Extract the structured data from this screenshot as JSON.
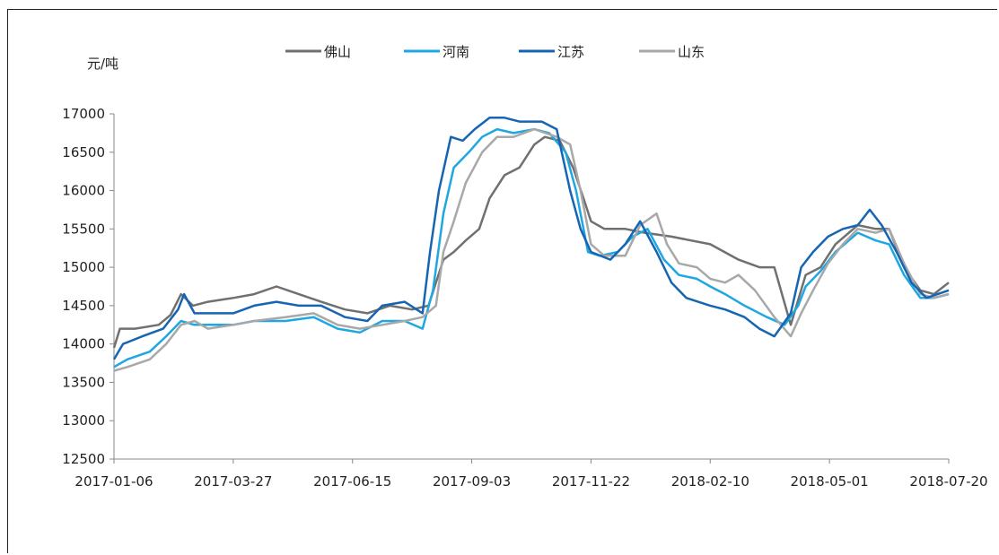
{
  "chart_data": {
    "type": "line",
    "title": "",
    "ylabel": "元/吨",
    "xlabel": "",
    "ylim": [
      12500,
      17000
    ],
    "y_ticks": [
      12500,
      13000,
      13500,
      14000,
      14500,
      15000,
      15500,
      16000,
      16500,
      17000
    ],
    "x_ticks": [
      "2017-01-06",
      "2017-03-27",
      "2017-06-15",
      "2017-09-03",
      "2017-11-22",
      "2018-02-10",
      "2018-05-01",
      "2018-07-20"
    ],
    "xlim": [
      "2017-01-06",
      "2018-07-20"
    ],
    "grid": false,
    "legend_position": "top-center",
    "series": [
      {
        "name": "佛山",
        "color": "#707070",
        "points": [
          [
            "2017-01-06",
            13950
          ],
          [
            "2017-01-10",
            14200
          ],
          [
            "2017-01-20",
            14200
          ],
          [
            "2017-02-05",
            14250
          ],
          [
            "2017-02-13",
            14380
          ],
          [
            "2017-02-20",
            14650
          ],
          [
            "2017-02-28",
            14500
          ],
          [
            "2017-03-10",
            14550
          ],
          [
            "2017-03-27",
            14600
          ],
          [
            "2017-04-10",
            14650
          ],
          [
            "2017-04-25",
            14750
          ],
          [
            "2017-05-10",
            14650
          ],
          [
            "2017-05-25",
            14550
          ],
          [
            "2017-06-10",
            14450
          ],
          [
            "2017-06-25",
            14400
          ],
          [
            "2017-07-10",
            14500
          ],
          [
            "2017-07-25",
            14450
          ],
          [
            "2017-08-05",
            14500
          ],
          [
            "2017-08-15",
            15100
          ],
          [
            "2017-08-22",
            15200
          ],
          [
            "2017-08-30",
            15350
          ],
          [
            "2017-09-08",
            15500
          ],
          [
            "2017-09-15",
            15900
          ],
          [
            "2017-09-25",
            16200
          ],
          [
            "2017-10-05",
            16300
          ],
          [
            "2017-10-15",
            16600
          ],
          [
            "2017-10-22",
            16700
          ],
          [
            "2017-11-01",
            16650
          ],
          [
            "2017-11-10",
            16300
          ],
          [
            "2017-11-17",
            15900
          ],
          [
            "2017-11-22",
            15600
          ],
          [
            "2017-12-01",
            15500
          ],
          [
            "2017-12-15",
            15500
          ],
          [
            "2017-12-28",
            15450
          ],
          [
            "2018-01-15",
            15400
          ],
          [
            "2018-02-10",
            15300
          ],
          [
            "2018-03-01",
            15100
          ],
          [
            "2018-03-15",
            15000
          ],
          [
            "2018-03-25",
            15000
          ],
          [
            "2018-04-05",
            14250
          ],
          [
            "2018-04-15",
            14900
          ],
          [
            "2018-04-25",
            15000
          ],
          [
            "2018-05-05",
            15300
          ],
          [
            "2018-05-20",
            15550
          ],
          [
            "2018-06-01",
            15500
          ],
          [
            "2018-06-10",
            15500
          ],
          [
            "2018-06-20",
            15000
          ],
          [
            "2018-07-01",
            14700
          ],
          [
            "2018-07-10",
            14650
          ],
          [
            "2018-07-20",
            14800
          ]
        ]
      },
      {
        "name": "河南",
        "color": "#1ea7e1",
        "points": [
          [
            "2017-01-06",
            13700
          ],
          [
            "2017-01-15",
            13800
          ],
          [
            "2017-01-30",
            13900
          ],
          [
            "2017-02-10",
            14100
          ],
          [
            "2017-02-20",
            14300
          ],
          [
            "2017-03-01",
            14250
          ],
          [
            "2017-03-27",
            14250
          ],
          [
            "2017-04-10",
            14300
          ],
          [
            "2017-05-01",
            14300
          ],
          [
            "2017-05-20",
            14350
          ],
          [
            "2017-06-05",
            14200
          ],
          [
            "2017-06-20",
            14150
          ],
          [
            "2017-07-05",
            14300
          ],
          [
            "2017-07-20",
            14300
          ],
          [
            "2017-08-01",
            14200
          ],
          [
            "2017-08-08",
            14700
          ],
          [
            "2017-08-15",
            15700
          ],
          [
            "2017-08-22",
            16300
          ],
          [
            "2017-09-01",
            16500
          ],
          [
            "2017-09-10",
            16700
          ],
          [
            "2017-09-20",
            16800
          ],
          [
            "2017-10-01",
            16750
          ],
          [
            "2017-10-15",
            16800
          ],
          [
            "2017-10-25",
            16750
          ],
          [
            "2017-11-05",
            16500
          ],
          [
            "2017-11-12",
            16000
          ],
          [
            "2017-11-20",
            15200
          ],
          [
            "2017-11-28",
            15150
          ],
          [
            "2017-12-10",
            15200
          ],
          [
            "2017-12-20",
            15400
          ],
          [
            "2017-12-30",
            15500
          ],
          [
            "2018-01-10",
            15100
          ],
          [
            "2018-01-20",
            14900
          ],
          [
            "2018-02-01",
            14850
          ],
          [
            "2018-02-10",
            14750
          ],
          [
            "2018-02-20",
            14650
          ],
          [
            "2018-03-05",
            14500
          ],
          [
            "2018-03-20",
            14350
          ],
          [
            "2018-04-01",
            14250
          ],
          [
            "2018-04-10",
            14500
          ],
          [
            "2018-04-15",
            14750
          ],
          [
            "2018-04-25",
            14950
          ],
          [
            "2018-05-05",
            15200
          ],
          [
            "2018-05-20",
            15450
          ],
          [
            "2018-06-01",
            15350
          ],
          [
            "2018-06-10",
            15300
          ],
          [
            "2018-06-20",
            14900
          ],
          [
            "2018-07-01",
            14600
          ],
          [
            "2018-07-10",
            14600
          ],
          [
            "2018-07-20",
            14650
          ]
        ]
      },
      {
        "name": "江苏",
        "color": "#1565b3",
        "points": [
          [
            "2017-01-06",
            13800
          ],
          [
            "2017-01-12",
            14000
          ],
          [
            "2017-01-25",
            14100
          ],
          [
            "2017-02-08",
            14200
          ],
          [
            "2017-02-18",
            14450
          ],
          [
            "2017-02-22",
            14650
          ],
          [
            "2017-03-01",
            14400
          ],
          [
            "2017-03-27",
            14400
          ],
          [
            "2017-04-10",
            14500
          ],
          [
            "2017-04-25",
            14550
          ],
          [
            "2017-05-10",
            14500
          ],
          [
            "2017-05-25",
            14500
          ],
          [
            "2017-06-10",
            14350
          ],
          [
            "2017-06-25",
            14300
          ],
          [
            "2017-07-05",
            14500
          ],
          [
            "2017-07-20",
            14550
          ],
          [
            "2017-08-01",
            14400
          ],
          [
            "2017-08-06",
            15200
          ],
          [
            "2017-08-12",
            16000
          ],
          [
            "2017-08-20",
            16700
          ],
          [
            "2017-08-28",
            16650
          ],
          [
            "2017-09-05",
            16800
          ],
          [
            "2017-09-15",
            16950
          ],
          [
            "2017-09-25",
            16950
          ],
          [
            "2017-10-05",
            16900
          ],
          [
            "2017-10-20",
            16900
          ],
          [
            "2017-10-30",
            16800
          ],
          [
            "2017-11-08",
            16000
          ],
          [
            "2017-11-15",
            15500
          ],
          [
            "2017-11-22",
            15200
          ],
          [
            "2017-12-05",
            15100
          ],
          [
            "2017-12-15",
            15300
          ],
          [
            "2017-12-25",
            15600
          ],
          [
            "2018-01-05",
            15200
          ],
          [
            "2018-01-15",
            14800
          ],
          [
            "2018-01-25",
            14600
          ],
          [
            "2018-02-10",
            14500
          ],
          [
            "2018-02-20",
            14450
          ],
          [
            "2018-03-05",
            14350
          ],
          [
            "2018-03-15",
            14200
          ],
          [
            "2018-03-25",
            14100
          ],
          [
            "2018-04-05",
            14400
          ],
          [
            "2018-04-12",
            15000
          ],
          [
            "2018-04-20",
            15200
          ],
          [
            "2018-04-30",
            15400
          ],
          [
            "2018-05-10",
            15500
          ],
          [
            "2018-05-20",
            15550
          ],
          [
            "2018-05-28",
            15750
          ],
          [
            "2018-06-05",
            15550
          ],
          [
            "2018-06-15",
            15200
          ],
          [
            "2018-06-25",
            14800
          ],
          [
            "2018-07-05",
            14600
          ],
          [
            "2018-07-20",
            14700
          ]
        ]
      },
      {
        "name": "山东",
        "color": "#a8a8a8",
        "points": [
          [
            "2017-01-06",
            13650
          ],
          [
            "2017-01-15",
            13700
          ],
          [
            "2017-01-30",
            13800
          ],
          [
            "2017-02-10",
            14000
          ],
          [
            "2017-02-20",
            14250
          ],
          [
            "2017-03-01",
            14300
          ],
          [
            "2017-03-10",
            14200
          ],
          [
            "2017-03-27",
            14250
          ],
          [
            "2017-04-10",
            14300
          ],
          [
            "2017-05-01",
            14350
          ],
          [
            "2017-05-20",
            14400
          ],
          [
            "2017-06-05",
            14250
          ],
          [
            "2017-06-20",
            14200
          ],
          [
            "2017-07-05",
            14250
          ],
          [
            "2017-07-20",
            14300
          ],
          [
            "2017-08-01",
            14350
          ],
          [
            "2017-08-10",
            14500
          ],
          [
            "2017-08-15",
            15200
          ],
          [
            "2017-08-22",
            15600
          ],
          [
            "2017-08-30",
            16100
          ],
          [
            "2017-09-10",
            16500
          ],
          [
            "2017-09-20",
            16700
          ],
          [
            "2017-10-01",
            16700
          ],
          [
            "2017-10-15",
            16800
          ],
          [
            "2017-10-30",
            16700
          ],
          [
            "2017-11-08",
            16600
          ],
          [
            "2017-11-15",
            16000
          ],
          [
            "2017-11-22",
            15300
          ],
          [
            "2017-12-01",
            15150
          ],
          [
            "2017-12-15",
            15150
          ],
          [
            "2017-12-25",
            15550
          ],
          [
            "2018-01-05",
            15700
          ],
          [
            "2018-01-12",
            15300
          ],
          [
            "2018-01-20",
            15050
          ],
          [
            "2018-02-01",
            15000
          ],
          [
            "2018-02-10",
            14850
          ],
          [
            "2018-02-20",
            14800
          ],
          [
            "2018-03-01",
            14900
          ],
          [
            "2018-03-12",
            14700
          ],
          [
            "2018-03-25",
            14350
          ],
          [
            "2018-04-05",
            14100
          ],
          [
            "2018-04-12",
            14400
          ],
          [
            "2018-04-20",
            14700
          ],
          [
            "2018-04-30",
            15050
          ],
          [
            "2018-05-10",
            15300
          ],
          [
            "2018-05-20",
            15500
          ],
          [
            "2018-06-01",
            15450
          ],
          [
            "2018-06-10",
            15500
          ],
          [
            "2018-06-20",
            15050
          ],
          [
            "2018-07-01",
            14650
          ],
          [
            "2018-07-10",
            14600
          ],
          [
            "2018-07-20",
            14650
          ]
        ]
      }
    ]
  }
}
